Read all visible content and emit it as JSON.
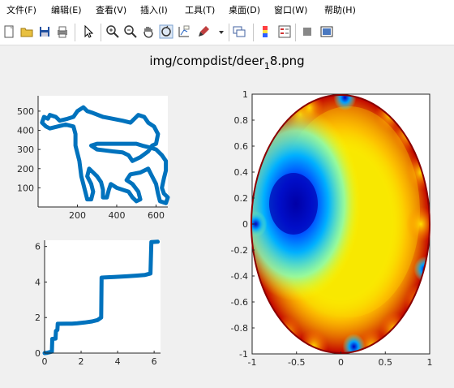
{
  "menu": [
    "文件(F)",
    "编辑(E)",
    "查看(V)",
    "插入(I)",
    "工具(T)",
    "桌面(D)",
    "窗口(W)",
    "帮助(H)"
  ],
  "toolbar_icons": [
    "new-file-icon",
    "open-folder-icon",
    "save-icon",
    "print-icon",
    "pointer-icon",
    "zoom-in-icon",
    "zoom-out-icon",
    "pan-hand-icon",
    "rotate-3d-icon",
    "data-cursor-icon",
    "brush-icon",
    "brush-dropdown-icon",
    "link-plot-icon",
    "colorbar-icon",
    "legend-icon",
    "hide-plot-tools-icon",
    "show-plot-tools-icon"
  ],
  "figure": {
    "title_prefix": "img/compdist/deer",
    "title_subscript": "1",
    "title_suffix": "8.png"
  },
  "chart_data": [
    {
      "type": "line",
      "name": "shape-outline",
      "xticks": [
        "200",
        "400",
        "600"
      ],
      "yticks": [
        "100",
        "200",
        "300",
        "400",
        "500"
      ],
      "xlim": [
        0,
        660
      ],
      "ylim": [
        0,
        580
      ],
      "color": "#0072bd",
      "points": [
        [
          270,
          320
        ],
        [
          300,
          300
        ],
        [
          340,
          295
        ],
        [
          380,
          290
        ],
        [
          430,
          285
        ],
        [
          460,
          270
        ],
        [
          480,
          240
        ],
        [
          520,
          260
        ],
        [
          560,
          290
        ],
        [
          580,
          320
        ],
        [
          600,
          330
        ],
        [
          610,
          380
        ],
        [
          590,
          420
        ],
        [
          560,
          440
        ],
        [
          540,
          470
        ],
        [
          510,
          480
        ],
        [
          470,
          440
        ],
        [
          430,
          450
        ],
        [
          380,
          460
        ],
        [
          330,
          470
        ],
        [
          280,
          490
        ],
        [
          250,
          500
        ],
        [
          230,
          520
        ],
        [
          200,
          500
        ],
        [
          180,
          470
        ],
        [
          150,
          460
        ],
        [
          110,
          450
        ],
        [
          90,
          470
        ],
        [
          60,
          480
        ],
        [
          50,
          460
        ],
        [
          30,
          470
        ],
        [
          20,
          440
        ],
        [
          40,
          420
        ],
        [
          60,
          410
        ],
        [
          100,
          420
        ],
        [
          140,
          430
        ],
        [
          180,
          420
        ],
        [
          190,
          380
        ],
        [
          190,
          320
        ],
        [
          200,
          280
        ],
        [
          210,
          240
        ],
        [
          215,
          200
        ],
        [
          220,
          160
        ],
        [
          230,
          120
        ],
        [
          240,
          80
        ],
        [
          250,
          40
        ],
        [
          270,
          40
        ],
        [
          280,
          80
        ],
        [
          270,
          120
        ],
        [
          250,
          160
        ],
        [
          260,
          200
        ],
        [
          280,
          180
        ],
        [
          300,
          160
        ],
        [
          320,
          130
        ],
        [
          330,
          90
        ],
        [
          330,
          50
        ],
        [
          350,
          50
        ],
        [
          360,
          90
        ],
        [
          370,
          120
        ],
        [
          400,
          100
        ],
        [
          430,
          90
        ],
        [
          460,
          80
        ],
        [
          480,
          50
        ],
        [
          500,
          30
        ],
        [
          520,
          40
        ],
        [
          510,
          80
        ],
        [
          480,
          120
        ],
        [
          450,
          140
        ],
        [
          470,
          170
        ],
        [
          520,
          180
        ],
        [
          560,
          200
        ],
        [
          580,
          160
        ],
        [
          600,
          120
        ],
        [
          610,
          70
        ],
        [
          620,
          30
        ],
        [
          650,
          20
        ],
        [
          660,
          50
        ],
        [
          640,
          70
        ],
        [
          630,
          100
        ],
        [
          640,
          150
        ],
        [
          650,
          190
        ],
        [
          650,
          240
        ],
        [
          630,
          270
        ],
        [
          600,
          300
        ],
        [
          570,
          310
        ],
        [
          530,
          320
        ],
        [
          500,
          330
        ],
        [
          470,
          330
        ],
        [
          440,
          330
        ],
        [
          400,
          330
        ],
        [
          350,
          330
        ],
        [
          300,
          330
        ],
        [
          270,
          320
        ]
      ]
    },
    {
      "type": "line",
      "name": "cumulative-step-curve",
      "xticks": [
        "0",
        "2",
        "4",
        "6"
      ],
      "yticks": [
        "0",
        "2",
        "4",
        "6"
      ],
      "xlim": [
        0,
        6.35
      ],
      "ylim": [
        0,
        6.35
      ],
      "color": "#0072bd",
      "points": [
        [
          0,
          0
        ],
        [
          0.15,
          0.02
        ],
        [
          0.4,
          0.08
        ],
        [
          0.42,
          0.8
        ],
        [
          0.6,
          0.82
        ],
        [
          0.62,
          1.25
        ],
        [
          0.7,
          1.3
        ],
        [
          0.72,
          1.65
        ],
        [
          1.2,
          1.66
        ],
        [
          1.5,
          1.66
        ],
        [
          1.8,
          1.68
        ],
        [
          2.2,
          1.72
        ],
        [
          2.6,
          1.78
        ],
        [
          2.9,
          1.86
        ],
        [
          3.1,
          2.0
        ],
        [
          3.12,
          4.25
        ],
        [
          3.8,
          4.28
        ],
        [
          4.5,
          4.32
        ],
        [
          5.0,
          4.36
        ],
        [
          5.5,
          4.4
        ],
        [
          5.8,
          4.48
        ],
        [
          5.85,
          6.25
        ],
        [
          6.2,
          6.27
        ]
      ]
    },
    {
      "type": "heatmap",
      "name": "disk-map",
      "xticks": [
        "-1",
        "-0.5",
        "0",
        "0.5",
        "1"
      ],
      "yticks": [
        "1",
        "0.8",
        "0.6",
        "0.4",
        "0.2",
        "0",
        "-0.2",
        "-0.4",
        "-0.6",
        "-0.8",
        "-1"
      ],
      "xlim": [
        -1,
        1
      ],
      "ylim": [
        -1,
        1
      ],
      "colormap": "jet",
      "minimum_center": [
        -0.55,
        0.15
      ],
      "boundary_cool_spots": [
        [
          -0.95,
          0.0
        ],
        [
          0.95,
          -0.35
        ],
        [
          0.05,
          0.98
        ],
        [
          0.15,
          -0.95
        ]
      ],
      "boundary_hot_spots": [
        [
          -0.45,
          0.85
        ],
        [
          -0.35,
          0.9
        ],
        [
          0.55,
          0.85
        ],
        [
          0.75,
          0.7
        ],
        [
          0.9,
          0.4
        ],
        [
          0.9,
          0.0
        ],
        [
          0.88,
          -0.6
        ],
        [
          0.6,
          -0.82
        ],
        [
          0.35,
          -0.95
        ],
        [
          -0.3,
          -0.95
        ],
        [
          -0.6,
          -0.85
        ]
      ]
    }
  ]
}
